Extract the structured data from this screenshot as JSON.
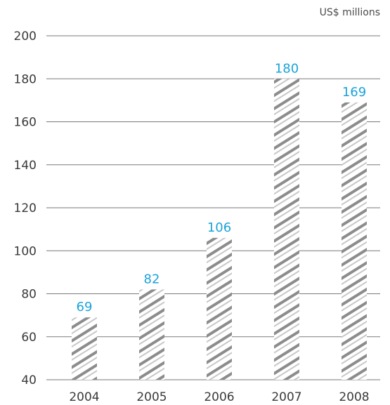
{
  "chart_data": {
    "type": "bar",
    "unit_label": "US$ millions",
    "categories": [
      "2004",
      "2005",
      "2006",
      "2007",
      "2008"
    ],
    "values": [
      69,
      82,
      106,
      180,
      169
    ],
    "value_labels": [
      "69",
      "82",
      "106",
      "180",
      "169"
    ],
    "ylim": [
      40,
      200
    ],
    "yticks": [
      40,
      60,
      80,
      100,
      120,
      140,
      160,
      180,
      200
    ],
    "ytick_labels": [
      "40",
      "60",
      "80",
      "100",
      "120",
      "140",
      "160",
      "180",
      "200"
    ],
    "grid": true,
    "bar_fill": "hatched",
    "colors": {
      "bar_hatch": "#8c8c8c",
      "bar_hatch_light": "#c8c8c8",
      "value_label": "#1aa3d9",
      "grid": "#7a7a7a",
      "text": "#3a3a3a"
    }
  }
}
